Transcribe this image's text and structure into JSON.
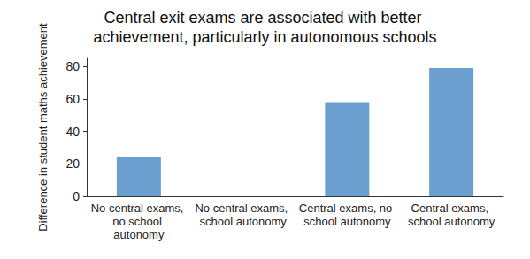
{
  "chart_data": {
    "type": "bar",
    "title": "Central exit exams are associated with better achievement, particularly in autonomous schools",
    "y_label": "Difference in student maths achievement",
    "categories": [
      "No central exams, no school autonomy",
      "No central exams, school autonomy",
      "Central exams, no school autonomy",
      "Central exams, school autonomy"
    ],
    "values": [
      24,
      0,
      58,
      79
    ],
    "color": "#6a9fd0",
    "ylim": [
      0,
      85
    ],
    "yticks": [
      0,
      20,
      40,
      60,
      80
    ],
    "grid": false
  }
}
